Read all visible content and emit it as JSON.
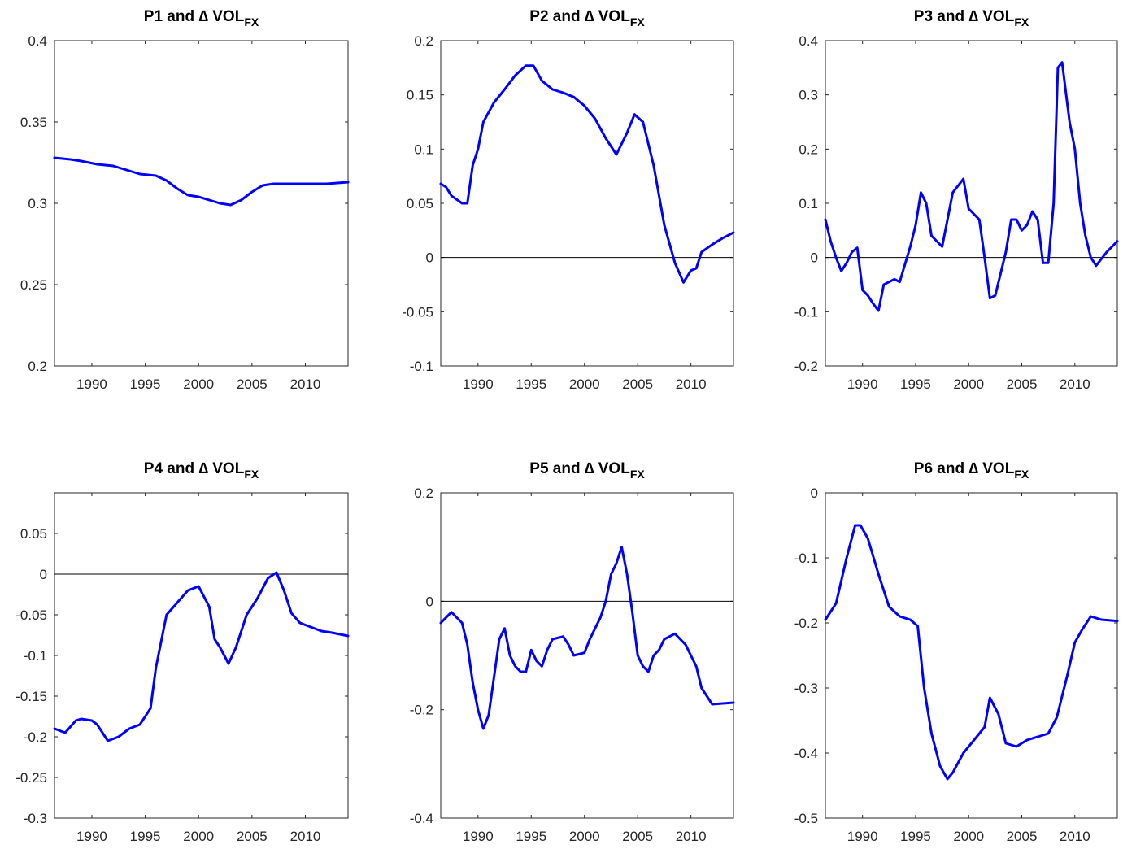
{
  "chart_data": [
    {
      "type": "line",
      "title": {
        "main": "P1 and ∆ VOL",
        "sub": "FX"
      },
      "xlim": [
        1986.5,
        2014
      ],
      "ylim": [
        0.2,
        0.4
      ],
      "xticks": [
        1990,
        1995,
        2000,
        2005,
        2010
      ],
      "yticks": [
        0.2,
        0.25,
        0.3,
        0.35,
        0.4
      ],
      "ytick_labels": [
        "0.2",
        "0.25",
        "0.3",
        "0.35",
        "0.4"
      ],
      "zero_line": false,
      "series": [
        {
          "color": "#0000ff",
          "x": [
            1986.5,
            1988,
            1989,
            1990.5,
            1992,
            1993,
            1994.5,
            1996,
            1997,
            1998,
            1999,
            2000,
            2001,
            2002,
            2003,
            2004,
            2005,
            2006,
            2007,
            2008,
            2010,
            2012,
            2014
          ],
          "y": [
            0.328,
            0.327,
            0.326,
            0.324,
            0.323,
            0.321,
            0.318,
            0.317,
            0.314,
            0.309,
            0.305,
            0.304,
            0.302,
            0.3,
            0.299,
            0.302,
            0.307,
            0.311,
            0.312,
            0.312,
            0.312,
            0.312,
            0.313
          ]
        }
      ]
    },
    {
      "type": "line",
      "title": {
        "main": "P2 and ∆ VOL",
        "sub": "FX"
      },
      "xlim": [
        1986.5,
        2014
      ],
      "ylim": [
        -0.1,
        0.2
      ],
      "xticks": [
        1990,
        1995,
        2000,
        2005,
        2010
      ],
      "yticks": [
        -0.1,
        -0.05,
        0,
        0.05,
        0.1,
        0.15,
        0.2
      ],
      "ytick_labels": [
        "-0.1",
        "-0.05",
        "0",
        "0.05",
        "0.1",
        "0.15",
        "0.2"
      ],
      "zero_line": true,
      "series": [
        {
          "color": "#0000ff",
          "x": [
            1986.5,
            1987,
            1987.5,
            1988.5,
            1989,
            1989.5,
            1990,
            1990.5,
            1991.5,
            1992.5,
            1993.5,
            1994.5,
            1995.2,
            1996,
            1997,
            1998,
            1999,
            2000,
            2001,
            2002,
            2003,
            2004,
            2004.7,
            2005.5,
            2006.5,
            2007.5,
            2008.5,
            2009.3,
            2010,
            2010.5,
            2011,
            2012,
            2013,
            2014
          ],
          "y": [
            0.068,
            0.065,
            0.057,
            0.05,
            0.05,
            0.085,
            0.1,
            0.125,
            0.143,
            0.155,
            0.168,
            0.177,
            0.177,
            0.163,
            0.155,
            0.152,
            0.148,
            0.14,
            0.128,
            0.11,
            0.095,
            0.115,
            0.132,
            0.125,
            0.085,
            0.03,
            -0.005,
            -0.023,
            -0.012,
            -0.01,
            0.005,
            0.012,
            0.018,
            0.023
          ]
        }
      ]
    },
    {
      "type": "line",
      "title": {
        "main": "P3 and ∆ VOL",
        "sub": "FX"
      },
      "xlim": [
        1986.5,
        2014
      ],
      "ylim": [
        -0.2,
        0.4
      ],
      "xticks": [
        1990,
        1995,
        2000,
        2005,
        2010
      ],
      "yticks": [
        -0.2,
        -0.1,
        0,
        0.1,
        0.2,
        0.3,
        0.4
      ],
      "ytick_labels": [
        "-0.2",
        "-0.1",
        "0",
        "0.1",
        "0.2",
        "0.3",
        "0.4"
      ],
      "zero_line": true,
      "series": [
        {
          "color": "#0000ff",
          "x": [
            1986.5,
            1987,
            1987.5,
            1988,
            1988.5,
            1989,
            1989.5,
            1990,
            1990.5,
            1991,
            1991.5,
            1992,
            1993,
            1993.5,
            1994.5,
            1995,
            1995.5,
            1996,
            1996.5,
            1997.5,
            1998.5,
            1999.5,
            2000,
            2001,
            2001.5,
            2002,
            2002.5,
            2003.5,
            2004,
            2004.5,
            2005,
            2005.5,
            2006,
            2006.5,
            2007,
            2007.5,
            2008,
            2008.4,
            2008.8,
            2009.5,
            2010,
            2010.5,
            2011,
            2011.5,
            2012,
            2013,
            2014
          ],
          "y": [
            0.07,
            0.03,
            0.0,
            -0.025,
            -0.01,
            0.01,
            0.018,
            -0.06,
            -0.07,
            -0.085,
            -0.098,
            -0.05,
            -0.04,
            -0.045,
            0.02,
            0.06,
            0.12,
            0.1,
            0.04,
            0.02,
            0.12,
            0.145,
            0.09,
            0.07,
            0.0,
            -0.075,
            -0.07,
            0.01,
            0.07,
            0.07,
            0.05,
            0.06,
            0.085,
            0.07,
            -0.01,
            -0.01,
            0.1,
            0.35,
            0.36,
            0.25,
            0.2,
            0.1,
            0.04,
            0.0,
            -0.015,
            0.01,
            0.03
          ]
        }
      ]
    },
    {
      "type": "line",
      "title": {
        "main": "P4 and ∆ VOL",
        "sub": "FX"
      },
      "xlim": [
        1986.5,
        2014
      ],
      "ylim": [
        -0.3,
        0.1
      ],
      "xticks": [
        1990,
        1995,
        2000,
        2005,
        2010
      ],
      "yticks": [
        -0.3,
        -0.25,
        -0.2,
        -0.15,
        -0.1,
        -0.05,
        0,
        0.05
      ],
      "ytick_labels": [
        "-0.3",
        "-0.25",
        "-0.2",
        "-0.15",
        "-0.1",
        "-0.05",
        "0",
        "0.05"
      ],
      "zero_line": true,
      "series": [
        {
          "color": "#0000ff",
          "x": [
            1986.5,
            1987.5,
            1988.5,
            1989,
            1990,
            1990.5,
            1991.5,
            1992.5,
            1993.5,
            1994.5,
            1995.5,
            1996,
            1997,
            1998,
            1999,
            2000,
            2001,
            2001.5,
            2002,
            2002.8,
            2003.5,
            2004.5,
            2005.5,
            2006.5,
            2007.3,
            2008,
            2008.7,
            2009.5,
            2010.5,
            2011.5,
            2012.5,
            2014
          ],
          "y": [
            -0.19,
            -0.195,
            -0.18,
            -0.178,
            -0.18,
            -0.185,
            -0.205,
            -0.2,
            -0.19,
            -0.185,
            -0.165,
            -0.115,
            -0.05,
            -0.035,
            -0.02,
            -0.015,
            -0.04,
            -0.08,
            -0.09,
            -0.11,
            -0.09,
            -0.05,
            -0.03,
            -0.005,
            0.002,
            -0.02,
            -0.048,
            -0.06,
            -0.065,
            -0.07,
            -0.072,
            -0.076
          ]
        }
      ]
    },
    {
      "type": "line",
      "title": {
        "main": "P5 and ∆ VOL",
        "sub": "FX"
      },
      "xlim": [
        1986.5,
        2014
      ],
      "ylim": [
        -0.4,
        0.2
      ],
      "xticks": [
        1990,
        1995,
        2000,
        2005,
        2010
      ],
      "yticks": [
        -0.4,
        -0.2,
        0,
        0.2
      ],
      "ytick_labels": [
        "-0.4",
        "-0.2",
        "0",
        "0.2"
      ],
      "zero_line": true,
      "series": [
        {
          "color": "#0000ff",
          "x": [
            1986.5,
            1987.5,
            1988.5,
            1989,
            1989.5,
            1990,
            1990.5,
            1991,
            1991.5,
            1992,
            1992.5,
            1993,
            1993.5,
            1994,
            1994.5,
            1995,
            1995.5,
            1996,
            1996.5,
            1997,
            1998,
            1998.5,
            1999,
            2000,
            2000.5,
            2001,
            2001.5,
            2002,
            2002.5,
            2003,
            2003.5,
            2004,
            2004.5,
            2005,
            2005.5,
            2006,
            2006.5,
            2007,
            2007.5,
            2008.5,
            2009.5,
            2010,
            2010.5,
            2011,
            2012,
            2014
          ],
          "y": [
            -0.04,
            -0.02,
            -0.04,
            -0.08,
            -0.15,
            -0.2,
            -0.235,
            -0.21,
            -0.14,
            -0.07,
            -0.05,
            -0.1,
            -0.12,
            -0.13,
            -0.13,
            -0.09,
            -0.11,
            -0.12,
            -0.09,
            -0.07,
            -0.065,
            -0.08,
            -0.1,
            -0.095,
            -0.07,
            -0.05,
            -0.03,
            0.0,
            0.05,
            0.07,
            0.1,
            0.05,
            -0.02,
            -0.1,
            -0.12,
            -0.13,
            -0.1,
            -0.09,
            -0.07,
            -0.06,
            -0.08,
            -0.1,
            -0.12,
            -0.16,
            -0.19,
            -0.187
          ]
        }
      ]
    },
    {
      "type": "line",
      "title": {
        "main": "P6 and ∆ VOL",
        "sub": "FX"
      },
      "xlim": [
        1986.5,
        2014
      ],
      "ylim": [
        -0.5,
        0
      ],
      "xticks": [
        1990,
        1995,
        2000,
        2005,
        2010
      ],
      "yticks": [
        -0.5,
        -0.4,
        -0.3,
        -0.2,
        -0.1,
        0
      ],
      "ytick_labels": [
        "-0.5",
        "-0.4",
        "-0.3",
        "-0.2",
        "-0.1",
        "0"
      ],
      "zero_line": false,
      "series": [
        {
          "color": "#0000ff",
          "x": [
            1986.5,
            1987.5,
            1988.5,
            1989.3,
            1989.8,
            1990.5,
            1991.5,
            1992.5,
            1993.5,
            1994.5,
            1995.2,
            1995.8,
            1996.5,
            1997.3,
            1998,
            1998.5,
            1999.5,
            2000.5,
            2001.5,
            2002,
            2002.8,
            2003.5,
            2004.5,
            2005.5,
            2006.5,
            2007.5,
            2008.3,
            2009.3,
            2010,
            2010.7,
            2011.5,
            2012.5,
            2014
          ],
          "y": [
            -0.195,
            -0.17,
            -0.1,
            -0.05,
            -0.05,
            -0.07,
            -0.125,
            -0.175,
            -0.19,
            -0.195,
            -0.205,
            -0.3,
            -0.37,
            -0.42,
            -0.44,
            -0.43,
            -0.4,
            -0.38,
            -0.36,
            -0.315,
            -0.34,
            -0.385,
            -0.39,
            -0.38,
            -0.375,
            -0.37,
            -0.345,
            -0.28,
            -0.23,
            -0.21,
            -0.19,
            -0.195,
            -0.197
          ]
        }
      ]
    }
  ]
}
